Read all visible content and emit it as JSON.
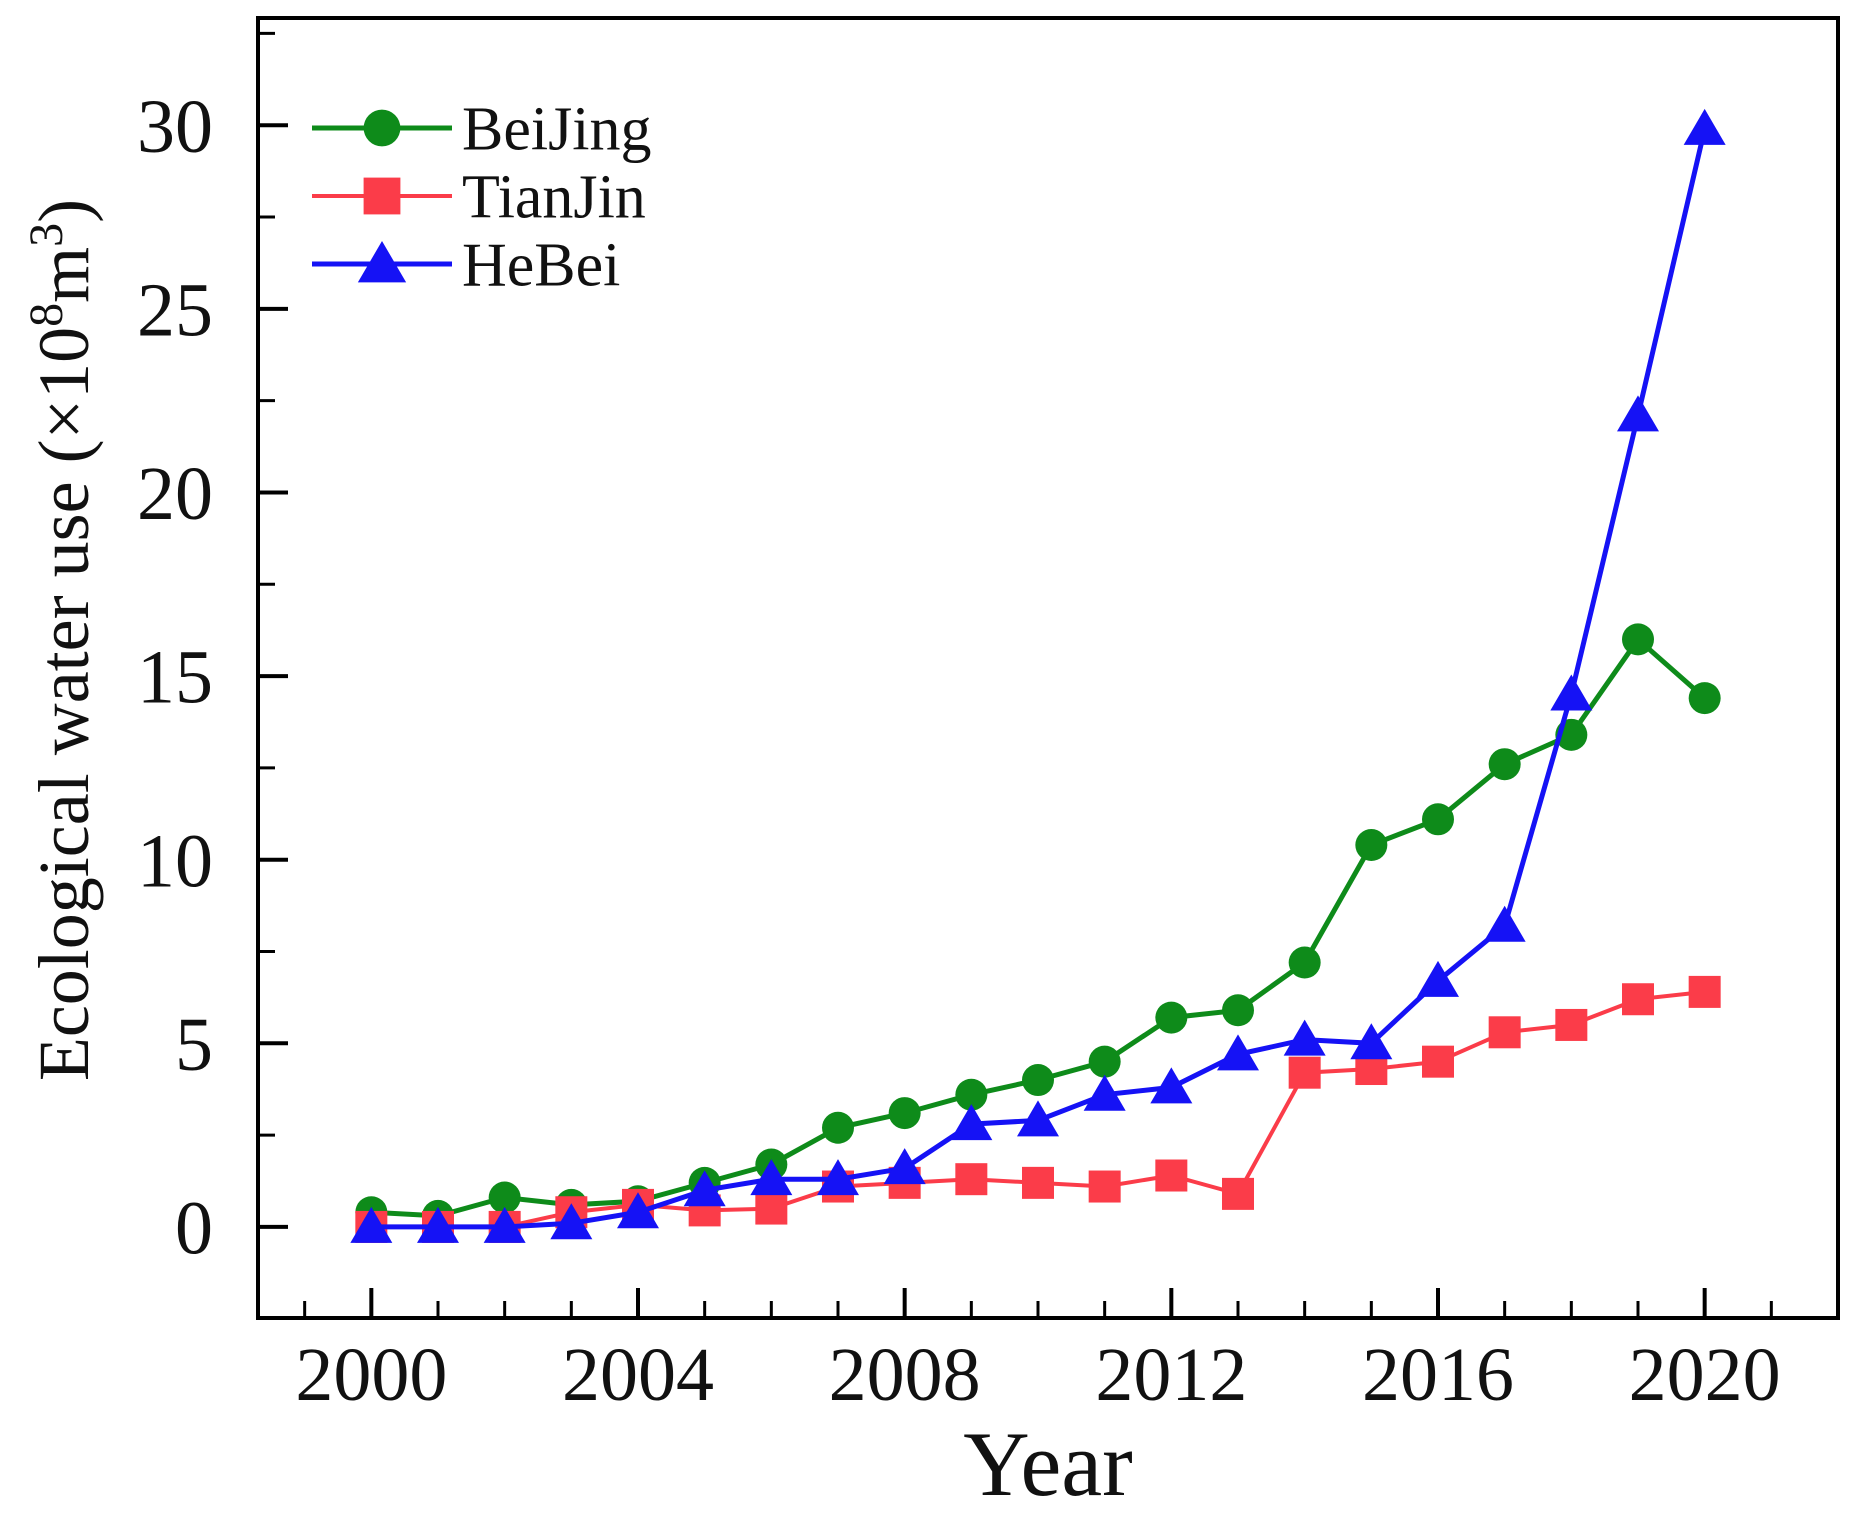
{
  "figure": {
    "background": "#ffffff"
  },
  "chart_data": {
    "type": "line",
    "title": "",
    "xlabel": "Year",
    "ylabel": "Ecological water use (×10⁸m³)",
    "ylabel_parts": {
      "prefix": "Ecological water use (×10",
      "sup1": "8",
      "mid": "m",
      "sup2": "3",
      "suffix": ")"
    },
    "x": [
      2000,
      2001,
      2002,
      2003,
      2004,
      2005,
      2006,
      2007,
      2008,
      2009,
      2010,
      2011,
      2012,
      2013,
      2014,
      2015,
      2016,
      2017,
      2018,
      2019,
      2020
    ],
    "series": [
      {
        "name": "BeiJing",
        "color": "#0e8b1a",
        "marker": "circle",
        "line_width": 5,
        "values": [
          0.4,
          0.3,
          0.8,
          0.6,
          0.7,
          1.2,
          1.7,
          2.7,
          3.1,
          3.6,
          4.0,
          4.5,
          5.7,
          5.9,
          7.2,
          10.4,
          11.1,
          12.6,
          13.4,
          16.0,
          14.4
        ]
      },
      {
        "name": "TianJin",
        "color": "#fb3c49",
        "marker": "square",
        "line_width": 4,
        "values": [
          0.0,
          0.0,
          0.0,
          0.4,
          0.6,
          0.45,
          0.5,
          1.1,
          1.2,
          1.3,
          1.2,
          1.1,
          1.4,
          0.9,
          4.2,
          4.3,
          4.5,
          5.3,
          5.5,
          6.2,
          6.4
        ]
      },
      {
        "name": "HeBei",
        "color": "#1512f5",
        "marker": "triangle",
        "line_width": 5,
        "values": [
          0.0,
          0.0,
          0.0,
          0.1,
          0.4,
          1.0,
          1.3,
          1.3,
          1.6,
          2.8,
          2.9,
          3.6,
          3.8,
          4.7,
          5.1,
          5.0,
          6.7,
          8.2,
          14.5,
          22.1,
          29.9
        ]
      }
    ],
    "xlim": [
      1998.3,
      2022.0
    ],
    "ylim": [
      -2.48,
      32.92
    ],
    "x_major_ticks": [
      2000,
      2004,
      2008,
      2012,
      2016,
      2020
    ],
    "x_major_tick_labels": [
      "2000",
      "2004",
      "2008",
      "2012",
      "2016",
      "2020"
    ],
    "x_minor_ticks": [
      1999,
      2001,
      2002,
      2003,
      2005,
      2006,
      2007,
      2009,
      2010,
      2011,
      2013,
      2014,
      2015,
      2017,
      2018,
      2019,
      2021
    ],
    "y_major_ticks": [
      0,
      5,
      10,
      15,
      20,
      25,
      30
    ],
    "y_major_tick_labels": [
      "0",
      "5",
      "10",
      "15",
      "20",
      "25",
      "30"
    ],
    "y_minor_ticks": [
      2.5,
      7.5,
      12.5,
      17.5,
      22.5,
      27.5,
      32.5
    ],
    "grid": false,
    "legend": {
      "position": "top-left",
      "entries": [
        "BeiJing",
        "TianJin",
        "HeBei"
      ]
    }
  }
}
